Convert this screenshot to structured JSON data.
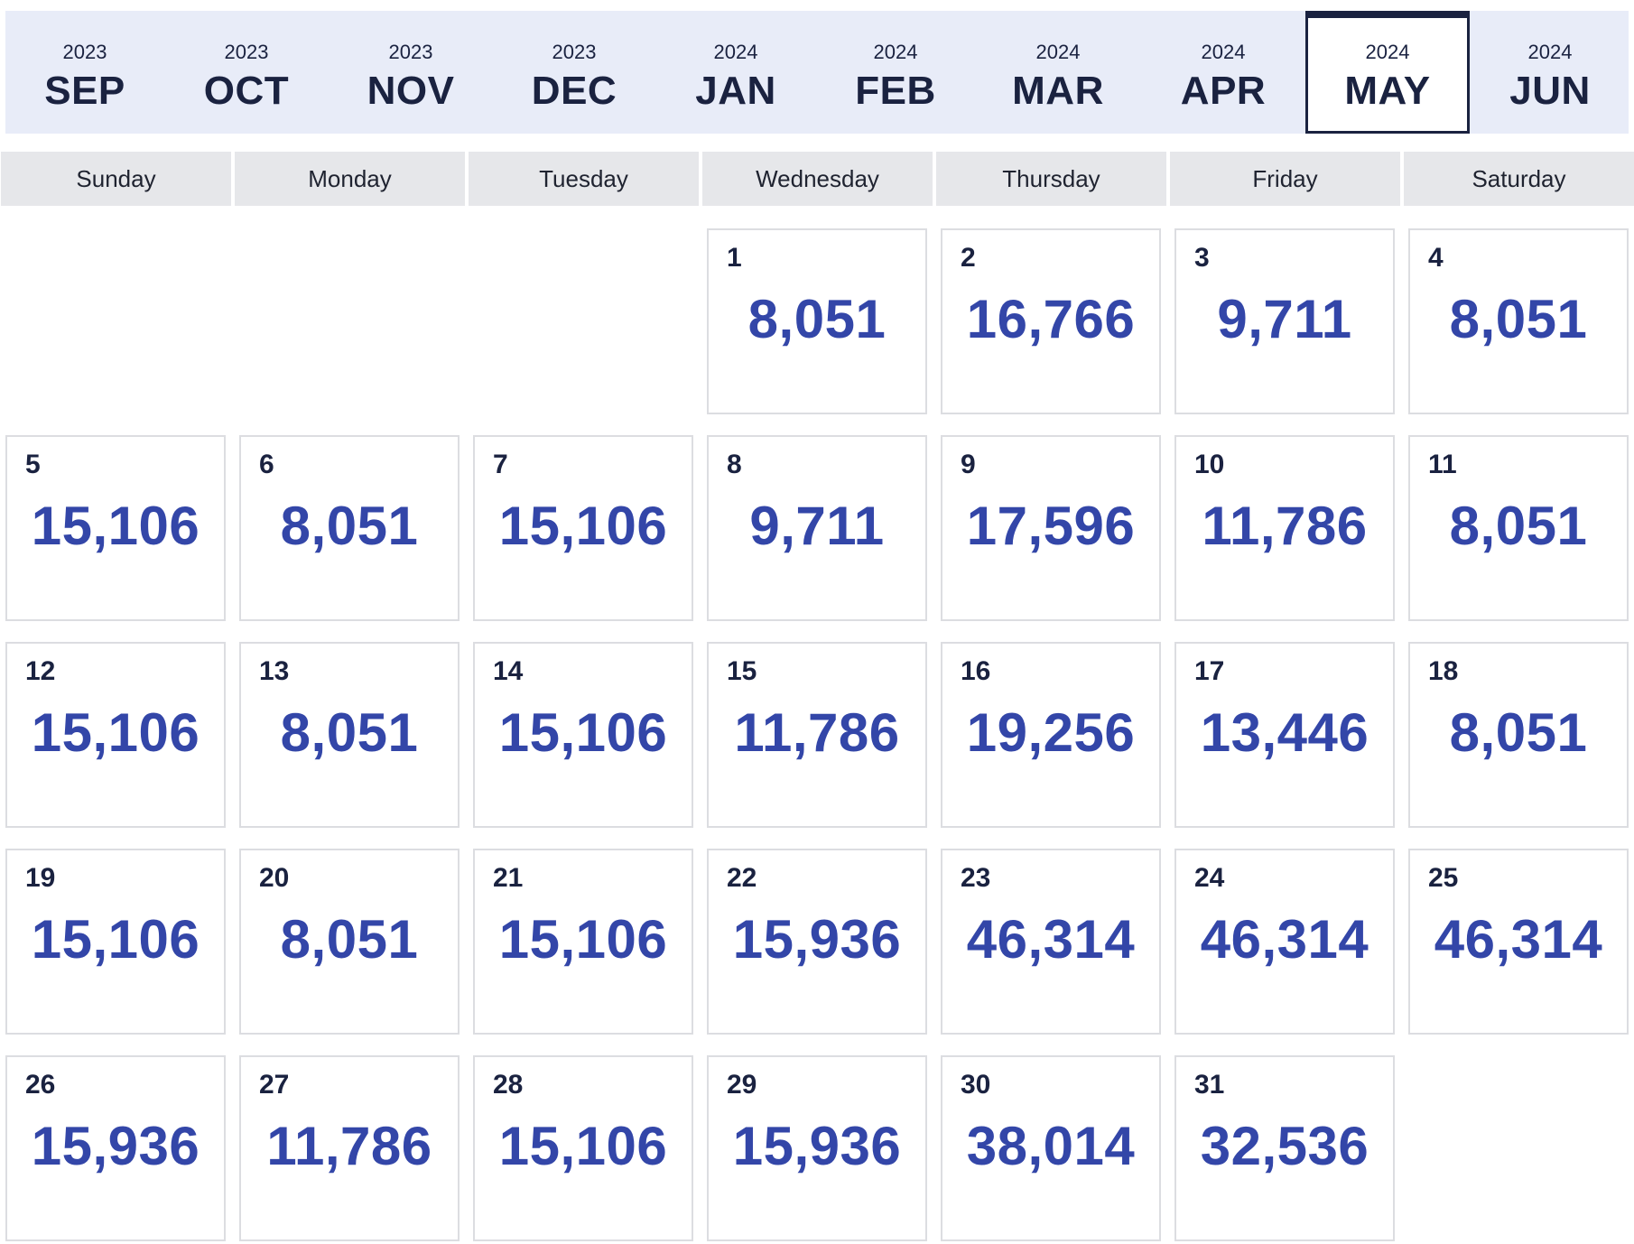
{
  "months": [
    {
      "year": "2023",
      "name": "SEP"
    },
    {
      "year": "2023",
      "name": "OCT"
    },
    {
      "year": "2023",
      "name": "NOV"
    },
    {
      "year": "2023",
      "name": "DEC"
    },
    {
      "year": "2024",
      "name": "JAN"
    },
    {
      "year": "2024",
      "name": "FEB"
    },
    {
      "year": "2024",
      "name": "MAR"
    },
    {
      "year": "2024",
      "name": "APR"
    },
    {
      "year": "2024",
      "name": "MAY"
    },
    {
      "year": "2024",
      "name": "JUN"
    }
  ],
  "selected_month_index": 8,
  "weekdays": [
    "Sunday",
    "Monday",
    "Tuesday",
    "Wednesday",
    "Thursday",
    "Friday",
    "Saturday"
  ],
  "first_weekday_index": 3,
  "days": [
    {
      "day": "1",
      "price": "8,051"
    },
    {
      "day": "2",
      "price": "16,766"
    },
    {
      "day": "3",
      "price": "9,711"
    },
    {
      "day": "4",
      "price": "8,051"
    },
    {
      "day": "5",
      "price": "15,106"
    },
    {
      "day": "6",
      "price": "8,051"
    },
    {
      "day": "7",
      "price": "15,106"
    },
    {
      "day": "8",
      "price": "9,711"
    },
    {
      "day": "9",
      "price": "17,596"
    },
    {
      "day": "10",
      "price": "11,786"
    },
    {
      "day": "11",
      "price": "8,051"
    },
    {
      "day": "12",
      "price": "15,106"
    },
    {
      "day": "13",
      "price": "8,051"
    },
    {
      "day": "14",
      "price": "15,106"
    },
    {
      "day": "15",
      "price": "11,786"
    },
    {
      "day": "16",
      "price": "19,256"
    },
    {
      "day": "17",
      "price": "13,446"
    },
    {
      "day": "18",
      "price": "8,051"
    },
    {
      "day": "19",
      "price": "15,106"
    },
    {
      "day": "20",
      "price": "8,051"
    },
    {
      "day": "21",
      "price": "15,106"
    },
    {
      "day": "22",
      "price": "15,936"
    },
    {
      "day": "23",
      "price": "46,314"
    },
    {
      "day": "24",
      "price": "46,314"
    },
    {
      "day": "25",
      "price": "46,314"
    },
    {
      "day": "26",
      "price": "15,936"
    },
    {
      "day": "27",
      "price": "11,786"
    },
    {
      "day": "28",
      "price": "15,106"
    },
    {
      "day": "29",
      "price": "15,936"
    },
    {
      "day": "30",
      "price": "38,014"
    },
    {
      "day": "31",
      "price": "32,536"
    }
  ],
  "colors": {
    "month_bar_bg": "#e8ecf8",
    "navy": "#1a2240",
    "price_blue": "#3346a8",
    "weekday_bg": "#e6e7ea",
    "cell_border": "#dcdde1"
  }
}
